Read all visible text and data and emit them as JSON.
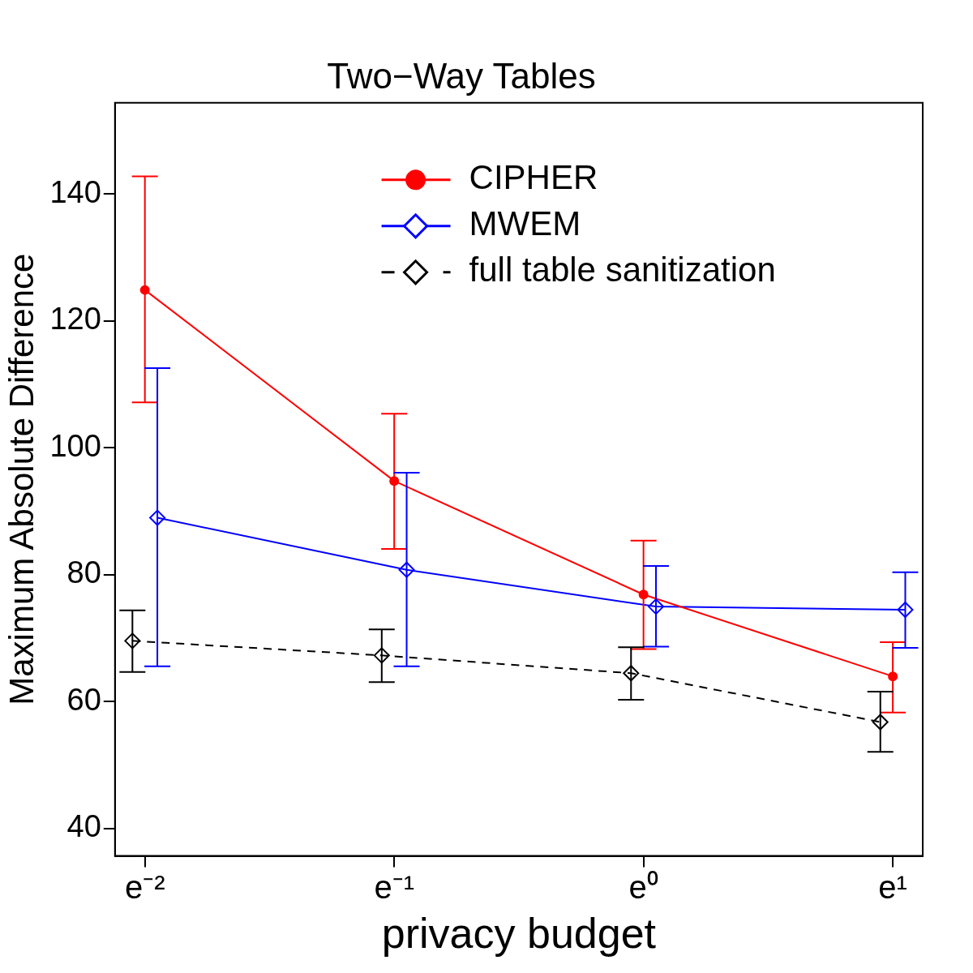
{
  "chart_data": {
    "type": "line",
    "title": "Two−Way Tables",
    "xlabel": "privacy budget",
    "ylabel": "Maximum Absolute Difference",
    "categories": [
      "e⁻²",
      "e⁻¹",
      "e⁰",
      "e¹"
    ],
    "ylim": [
      35.7,
      154.4
    ],
    "yticks": [
      40,
      60,
      80,
      100,
      120,
      140
    ],
    "grid": false,
    "legend": "top right",
    "series": [
      {
        "name": "CIPHER",
        "color": "#ff0000",
        "marker": "circle",
        "line_style": "solid",
        "values": [
          124.9,
          94.8,
          76.9,
          64.0
        ],
        "errors": [
          [
            107.2,
            142.8
          ],
          [
            84.1,
            105.4
          ],
          [
            68.3,
            85.4
          ],
          [
            58.3,
            69.4
          ]
        ]
      },
      {
        "name": "MWEM",
        "color": "#0000ff",
        "marker": "diamond",
        "line_style": "solid",
        "values": [
          89.0,
          80.8,
          75.0,
          74.5
        ],
        "errors": [
          [
            65.6,
            112.6
          ],
          [
            65.6,
            96.1
          ],
          [
            68.7,
            81.4
          ],
          [
            68.5,
            80.4
          ]
        ]
      },
      {
        "name": "full table sanitization",
        "color": "#000000",
        "marker": "diamond",
        "line_style": "dashed",
        "values": [
          69.6,
          67.3,
          64.5,
          56.8
        ],
        "errors": [
          [
            64.7,
            74.4
          ],
          [
            63.1,
            71.4
          ],
          [
            60.3,
            68.6
          ],
          [
            52.1,
            61.6
          ]
        ]
      }
    ]
  }
}
